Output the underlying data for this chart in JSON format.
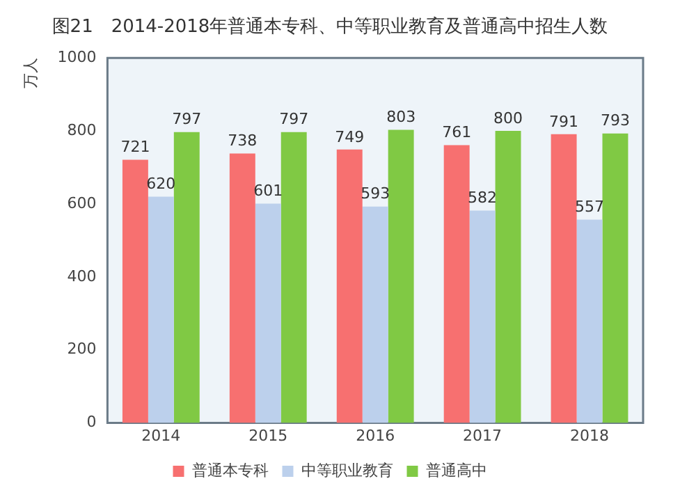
{
  "chart_data": {
    "type": "bar",
    "title": "图21　2014-2018年普通本专科、中等职业教育及普通高中招生人数",
    "ylabel": "万人",
    "categories": [
      "2014",
      "2015",
      "2016",
      "2017",
      "2018"
    ],
    "series": [
      {
        "name": "普通本专科",
        "color": "#f77070",
        "values": [
          721,
          738,
          749,
          761,
          791
        ]
      },
      {
        "name": "中等职业教育",
        "color": "#bcd0ec",
        "values": [
          620,
          601,
          593,
          582,
          557
        ]
      },
      {
        "name": "普通高中",
        "color": "#80c944",
        "values": [
          797,
          797,
          803,
          800,
          793
        ]
      }
    ],
    "ylim": [
      0,
      1000
    ],
    "yticks": [
      0,
      200,
      400,
      600,
      800,
      1000
    ],
    "grid": false,
    "legend": "bottom",
    "data_labels": true
  }
}
